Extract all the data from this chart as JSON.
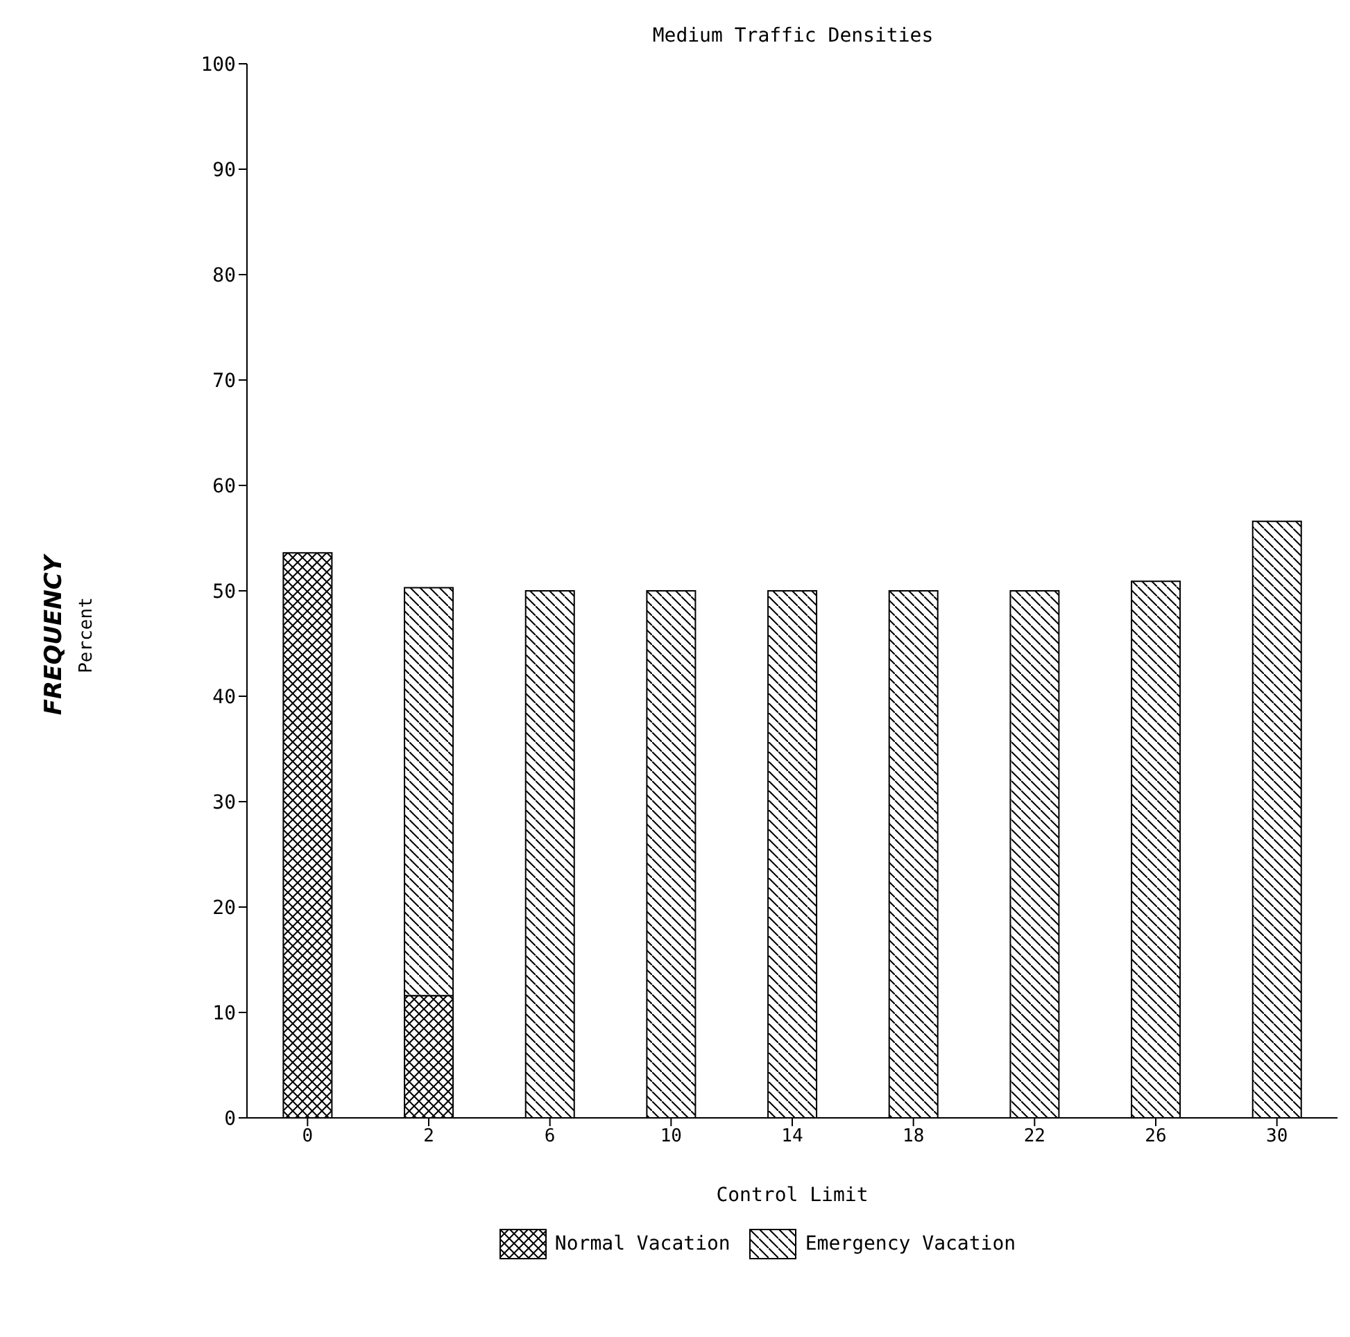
{
  "chart_data": {
    "type": "bar",
    "title": "Medium Traffic Densities",
    "xlabel": "Control Limit",
    "ylabel": "FREQUENCY\nPercent",
    "categories": [
      "0",
      "2",
      "6",
      "10",
      "14",
      "18",
      "22",
      "26",
      "30"
    ],
    "stacked": true,
    "series": [
      {
        "name": "Normal Vacation",
        "color": "#000000",
        "values": [
          53.6,
          11.6,
          null,
          null,
          null,
          null,
          null,
          null,
          null
        ]
      },
      {
        "name": "Emergency Vacation",
        "color": "#000000",
        "values": [
          null,
          38.7,
          50.0,
          50.0,
          50.0,
          50.0,
          50.0,
          50.9,
          56.6
        ]
      }
    ],
    "ylim": [
      0,
      100
    ],
    "yticks": [
      0,
      10,
      20,
      30,
      40,
      50,
      60,
      70,
      80,
      90,
      100
    ],
    "grid": false,
    "legend": "bottom"
  }
}
